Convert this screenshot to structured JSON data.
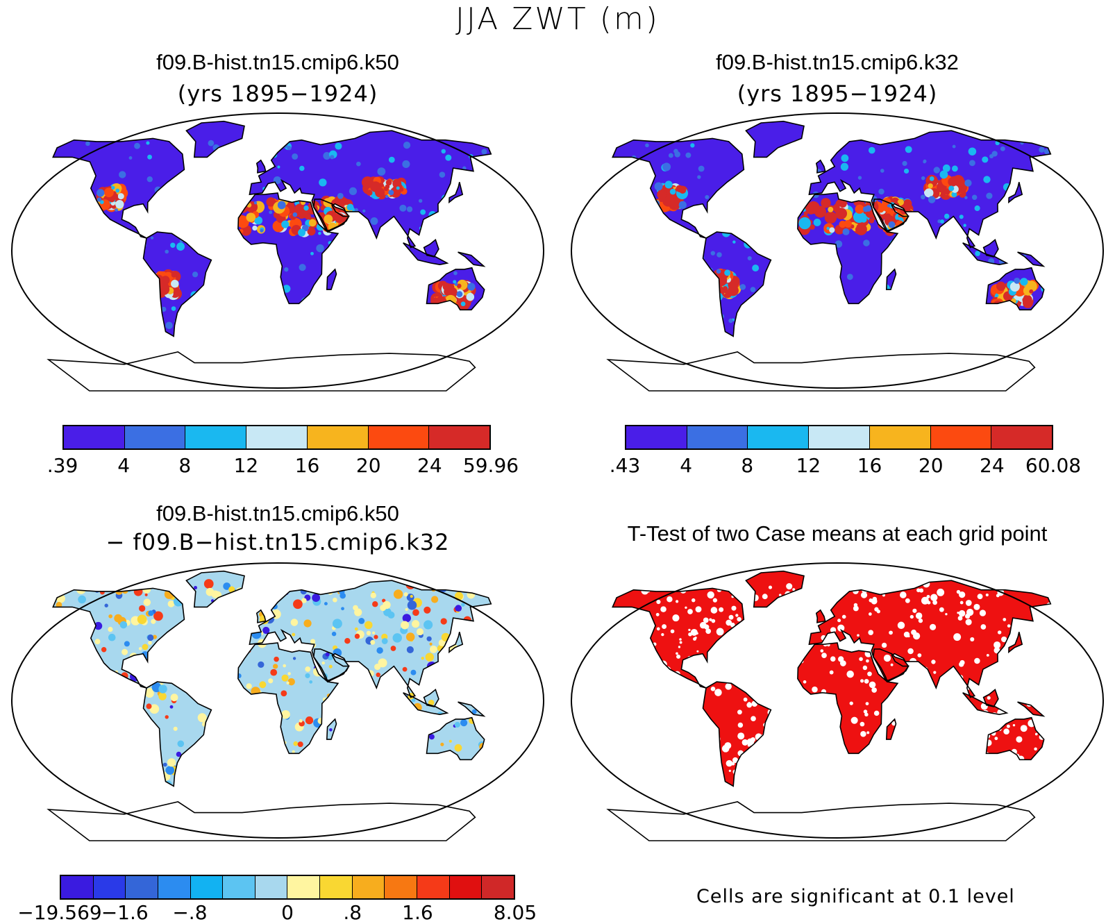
{
  "figure": {
    "title": "JJA ZWT (m)"
  },
  "panels": [
    {
      "title": "f09.B-hist.tn15.cmip6.k50",
      "subtitle": "(yrs 1895−1924)",
      "colorbar": {
        "colors": [
          "#4a1ee8",
          "#3b6fe3",
          "#1ab8f0",
          "#c8e8f5",
          "#f7b41e",
          "#fc4a10",
          "#d62a28"
        ],
        "labels": [
          ".39",
          "4",
          "8",
          "12",
          "16",
          "20",
          "24",
          "59.96"
        ]
      }
    },
    {
      "title": "f09.B-hist.tn15.cmip6.k32",
      "subtitle": "(yrs 1895−1924)",
      "colorbar": {
        "colors": [
          "#4a1ee8",
          "#3b6fe3",
          "#1ab8f0",
          "#c8e8f5",
          "#f7b41e",
          "#fc4a10",
          "#d62a28"
        ],
        "labels": [
          ".43",
          "4",
          "8",
          "12",
          "16",
          "20",
          "24",
          "60.08"
        ]
      }
    },
    {
      "title": "f09.B-hist.tn15.cmip6.k50",
      "subtitle": "− f09.B−hist.tn15.cmip6.k32",
      "colorbar": {
        "colors": [
          "#3a1be0",
          "#2a3ae8",
          "#3466d8",
          "#2c8cf0",
          "#12b2f2",
          "#5cc4f2",
          "#a8d8ee",
          "#fff5a0",
          "#f9d732",
          "#f7ad1e",
          "#f77812",
          "#f53a18",
          "#e01010",
          "#d02828"
        ],
        "labels": [
          "−19.569",
          "−1.6",
          "−.8",
          "0",
          ".8",
          "1.6",
          "8.05"
        ]
      }
    },
    {
      "title": "T-Test of two Case means at each grid point",
      "note": "Cells are significant at 0.1 level",
      "fill_color": "#ee1111"
    }
  ]
}
